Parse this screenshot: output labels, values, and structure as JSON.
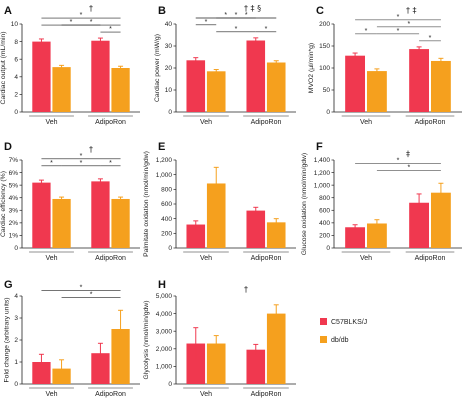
{
  "colors": {
    "c57": "#f0384f",
    "dbdb": "#f5a01e",
    "axis": "#222222"
  },
  "legend": [
    {
      "name": "C57BLKS/J",
      "color": "#f0384f"
    },
    {
      "name": "db/db",
      "color": "#f5a01e"
    }
  ],
  "chart_data": [
    {
      "panel": "A",
      "type": "bar",
      "ylabel": "Cardiac output (mL/min)",
      "ylim": [
        0,
        10
      ],
      "yticks": [
        "0",
        "2",
        "4",
        "6",
        "8",
        "10"
      ],
      "groups": [
        "Veh",
        "AdipoRon"
      ],
      "series": [
        {
          "name": "C57BLKS/J",
          "values": [
            8.0,
            8.1
          ],
          "errors": [
            0.3,
            0.3
          ]
        },
        {
          "name": "db/db",
          "values": [
            5.1,
            5.0
          ],
          "errors": [
            0.2,
            0.2
          ]
        }
      ],
      "header_symbol": "†",
      "sig": [
        {
          "from": 0,
          "to": 3,
          "level": 1,
          "label": "*"
        },
        {
          "from": 0,
          "to": 2,
          "level": 0,
          "label": "*"
        },
        {
          "from": 1,
          "to": 3,
          "level": 0,
          "label": "*"
        },
        {
          "from": 2,
          "to": 3,
          "level": -1,
          "label": "*"
        }
      ]
    },
    {
      "panel": "B",
      "type": "bar",
      "ylabel": "Cardiac power (mW/g)",
      "ylim": [
        0,
        40
      ],
      "yticks": [
        "0",
        "10",
        "20",
        "30",
        "40"
      ],
      "groups": [
        "Veh",
        "AdipoRon"
      ],
      "series": [
        {
          "name": "C57BLKS/J",
          "values": [
            23.5,
            32.5
          ],
          "errors": [
            1.2,
            1.2
          ]
        },
        {
          "name": "db/db",
          "values": [
            18.5,
            22.5
          ],
          "errors": [
            0.8,
            0.8
          ]
        }
      ],
      "header_symbol": "† ‡ §",
      "sig": [
        {
          "from": 0,
          "to": 3,
          "level": 3,
          "label": "*"
        },
        {
          "from": 0,
          "to": 2,
          "level": 2,
          "label": "*"
        },
        {
          "from": 1,
          "to": 3,
          "level": 1,
          "label": "*"
        },
        {
          "from": 0,
          "to": 1,
          "level": 0,
          "label": "*"
        },
        {
          "from": 1,
          "to": 2,
          "level": -1,
          "label": "*"
        },
        {
          "from": 2,
          "to": 3,
          "level": -1,
          "label": "*"
        }
      ]
    },
    {
      "panel": "C",
      "type": "bar",
      "ylabel": "MVO2 (µl/min*g)",
      "ylim": [
        0,
        200
      ],
      "yticks": [
        "0",
        "50",
        "100",
        "150",
        "200"
      ],
      "groups": [
        "Veh",
        "AdipoRon"
      ],
      "series": [
        {
          "name": "C57BLKS/J",
          "values": [
            128,
            143
          ],
          "errors": [
            6,
            5
          ]
        },
        {
          "name": "db/db",
          "values": [
            93,
            116
          ],
          "errors": [
            5,
            6
          ]
        }
      ],
      "header_symbol": "† ‡",
      "sig": [
        {
          "from": 0,
          "to": 3,
          "level": 2,
          "label": "*"
        },
        {
          "from": 1,
          "to": 3,
          "level": 1,
          "label": "*"
        },
        {
          "from": 0,
          "to": 1,
          "level": 0,
          "label": "*"
        },
        {
          "from": 1,
          "to": 2,
          "level": 0,
          "label": "*"
        },
        {
          "from": 2,
          "to": 3,
          "level": -1,
          "label": "*"
        }
      ]
    },
    {
      "panel": "D",
      "type": "bar",
      "ylabel": "Cardiac efficiency (%)",
      "ylim": [
        0,
        7
      ],
      "yticks": [
        "0",
        "1%",
        "2%",
        "3%",
        "4%",
        "5%",
        "6%",
        "7%"
      ],
      "groups": [
        "Veh",
        "AdipoRon"
      ],
      "series": [
        {
          "name": "C57BLKS/J",
          "values": [
            5.2,
            5.3
          ],
          "errors": [
            0.2,
            0.2
          ]
        },
        {
          "name": "db/db",
          "values": [
            3.9,
            3.9
          ],
          "errors": [
            0.15,
            0.15
          ]
        }
      ],
      "header_symbol": "†",
      "sig": [
        {
          "from": 0,
          "to": 3,
          "level": 1,
          "label": "*"
        },
        {
          "from": 0,
          "to": 1,
          "level": 0,
          "label": "*"
        },
        {
          "from": 1,
          "to": 2,
          "level": 0,
          "label": "*"
        },
        {
          "from": 2,
          "to": 3,
          "level": 0,
          "label": "*"
        }
      ]
    },
    {
      "panel": "E",
      "type": "bar",
      "ylabel": "Palmitate oxidation (nmol/min/gdw)",
      "ylim": [
        0,
        1200
      ],
      "yticks": [
        "0",
        "200",
        "400",
        "600",
        "800",
        "1,000",
        "1,200"
      ],
      "groups": [
        "Veh",
        "AdipoRon"
      ],
      "series": [
        {
          "name": "C57BLKS/J",
          "values": [
            320,
            510
          ],
          "errors": [
            50,
            45
          ]
        },
        {
          "name": "db/db",
          "values": [
            880,
            350
          ],
          "errors": [
            220,
            50
          ]
        }
      ],
      "header_symbol": "",
      "sig": []
    },
    {
      "panel": "F",
      "type": "bar",
      "ylabel": "Glucose oxidation (nmol/min/gdw)",
      "ylim": [
        0,
        1400
      ],
      "yticks": [
        "0",
        "200",
        "400",
        "600",
        "800",
        "1,000",
        "1,200",
        "1,400"
      ],
      "groups": [
        "Veh",
        "AdipoRon"
      ],
      "series": [
        {
          "name": "C57BLKS/J",
          "values": [
            330,
            720
          ],
          "errors": [
            40,
            140
          ]
        },
        {
          "name": "db/db",
          "values": [
            390,
            880
          ],
          "errors": [
            60,
            150
          ]
        }
      ],
      "header_symbol": "‡",
      "sig": [
        {
          "from": 0,
          "to": 3,
          "level": 1,
          "label": "*"
        },
        {
          "from": 1,
          "to": 3,
          "level": 0,
          "label": "*"
        }
      ]
    },
    {
      "panel": "G",
      "type": "bar",
      "ylabel": "Fold change (arbitrary units)",
      "ylim": [
        0,
        4
      ],
      "yticks": [
        "0",
        "1",
        "2",
        "3",
        "4"
      ],
      "groups": [
        "Veh",
        "AdipoRon"
      ],
      "series": [
        {
          "name": "C57BLKS/J",
          "values": [
            1.0,
            1.4
          ],
          "errors": [
            0.35,
            0.45
          ]
        },
        {
          "name": "db/db",
          "values": [
            0.7,
            2.5
          ],
          "errors": [
            0.4,
            0.85
          ]
        }
      ],
      "header_symbol": "",
      "sig": [
        {
          "from": 0,
          "to": 3,
          "level": 1,
          "label": "*"
        },
        {
          "from": 1,
          "to": 3,
          "level": 0,
          "label": "*"
        }
      ]
    },
    {
      "panel": "H",
      "type": "bar",
      "ylabel": "Glycolysis (nmol/min/gdw)",
      "ylim": [
        0,
        5000
      ],
      "yticks": [
        "0",
        "1,000",
        "2,000",
        "3,000",
        "4,000",
        "5,000"
      ],
      "groups": [
        "Veh",
        "AdipoRon"
      ],
      "series": [
        {
          "name": "C57BLKS/J",
          "values": [
            2300,
            1950
          ],
          "errors": [
            900,
            300
          ]
        },
        {
          "name": "db/db",
          "values": [
            2300,
            4000
          ],
          "errors": [
            450,
            500
          ]
        }
      ],
      "header_symbol": "†",
      "sig": []
    }
  ]
}
